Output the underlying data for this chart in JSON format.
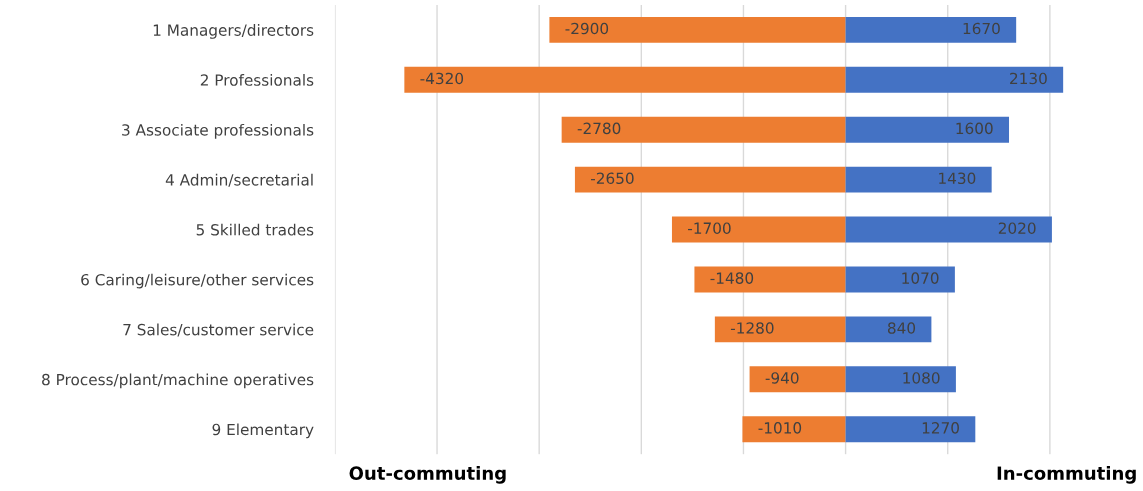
{
  "chart_data": {
    "type": "bar",
    "orientation": "horizontal",
    "stacked": true,
    "categories": [
      "1 Managers/directors",
      "2 Professionals",
      "3 Associate professionals",
      "4 Admin/secretarial",
      "5 Skilled trades",
      "6 Caring/leisure/other services",
      "7 Sales/customer service",
      "8 Process/plant/machine operatives",
      "9 Elementary"
    ],
    "series": [
      {
        "color": "#ed7d31",
        "values": [
          -2900,
          -4320,
          -2780,
          -2650,
          -1700,
          -1480,
          -1280,
          -940,
          -1010
        ]
      },
      {
        "color": "#4472c4",
        "values": [
          1670,
          2130,
          1600,
          1430,
          2020,
          1070,
          840,
          1080,
          1270
        ]
      }
    ],
    "xticks": [
      {
        "value": -5000,
        "label": null
      },
      {
        "value": -4000,
        "label": null
      },
      {
        "value": -3000,
        "label": null
      },
      {
        "value": -2000,
        "label": null
      },
      {
        "value": -1000,
        "label": null
      },
      {
        "value": 0,
        "label": null
      },
      {
        "value": 1000,
        "label": null
      },
      {
        "value": 2000,
        "label": null
      }
    ],
    "grid": "x",
    "data_labels": true,
    "annotations": [
      "Out-commuting",
      "In-commuting"
    ]
  }
}
